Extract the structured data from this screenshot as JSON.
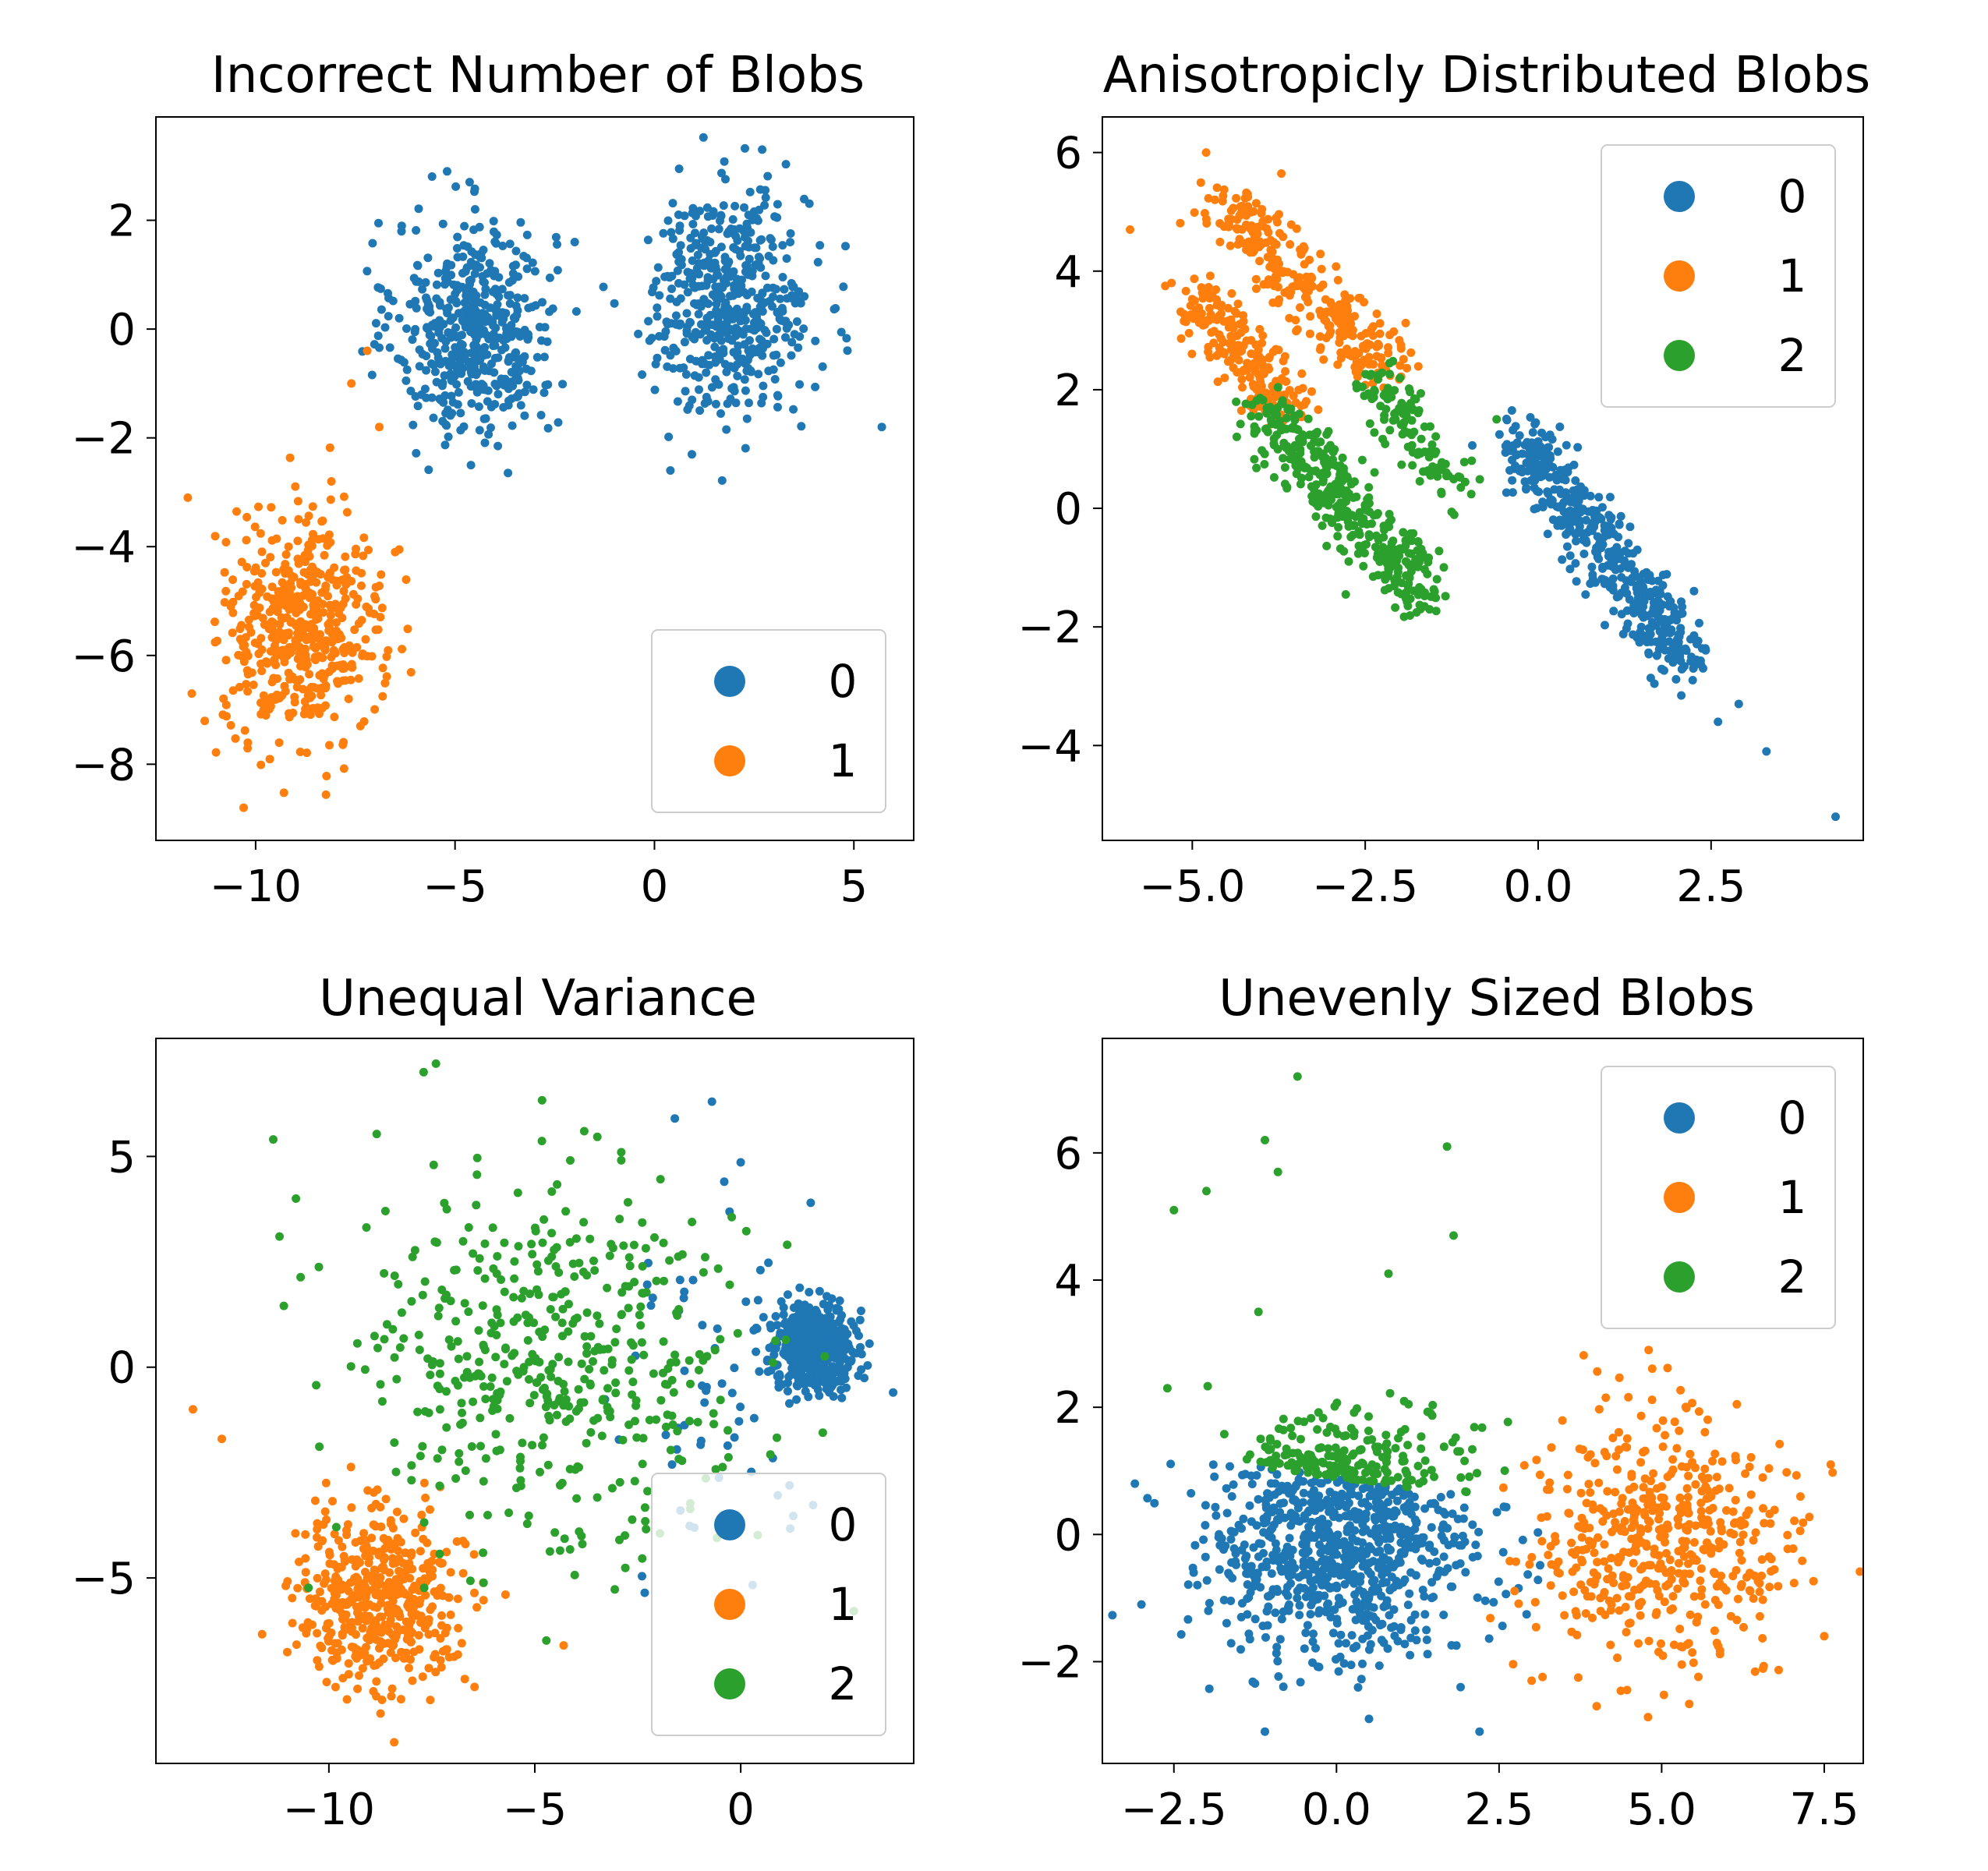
{
  "figure": {
    "colors": {
      "0": "#1f77b4",
      "1": "#ff7f0e",
      "2": "#2ca02c"
    }
  },
  "chart_data": [
    {
      "type": "scatter",
      "title": "Incorrect Number of Blobs",
      "xlim": [
        -12.5,
        6.5
      ],
      "ylim": [
        -9.4,
        3.9
      ],
      "xticks": [
        -10,
        -5,
        0,
        5
      ],
      "yticks": [
        -8,
        -6,
        -4,
        -2,
        0,
        2
      ],
      "legend": {
        "position": "lower-right",
        "entries": [
          "0",
          "1"
        ]
      },
      "grid": false,
      "clusters": [
        {
          "label": "0",
          "shape": "gaussian",
          "center": [
            -4.5,
            0.0
          ],
          "spread": [
            1.0,
            1.0
          ],
          "count": 500
        },
        {
          "label": "0",
          "shape": "gaussian",
          "center": [
            1.9,
            0.5
          ],
          "spread": [
            1.0,
            1.0
          ],
          "count": 500
        },
        {
          "label": "1",
          "shape": "gaussian",
          "center": [
            -8.8,
            -5.5
          ],
          "spread": [
            1.0,
            1.0
          ],
          "count": 500
        }
      ],
      "series": [
        {
          "name": "0",
          "points": [
            [
              -5.2,
              2.9
            ],
            [
              2.7,
              3.3
            ],
            [
              5.7,
              -1.8
            ],
            [
              0.4,
              -2.6
            ],
            [
              -4.6,
              -2.5
            ],
            [
              -2.0,
              1.6
            ],
            [
              -6.4,
              0.2
            ]
          ]
        },
        {
          "name": "1",
          "points": [
            [
              -11.7,
              -3.1
            ],
            [
              -10.3,
              -8.8
            ],
            [
              -8.1,
              -2.8
            ],
            [
              -6.5,
              -4.1
            ],
            [
              -7.2,
              -0.4
            ],
            [
              -6.9,
              -1.8
            ],
            [
              -7.6,
              -1.0
            ],
            [
              -11.6,
              -6.7
            ]
          ]
        }
      ]
    },
    {
      "type": "scatter",
      "title": "Anisotropicly Distributed Blobs",
      "xlim": [
        -6.3,
        4.7
      ],
      "ylim": [
        -5.6,
        6.6
      ],
      "xticks": [
        -5.0,
        -2.5,
        0.0,
        2.5
      ],
      "yticks": [
        -4,
        -2,
        0,
        2,
        4,
        6
      ],
      "legend": {
        "position": "upper-right",
        "entries": [
          "0",
          "1",
          "2"
        ]
      },
      "grid": false,
      "clusters": [
        {
          "label": "0",
          "shape": "segment",
          "from": [
            -0.3,
            1.2
          ],
          "to": [
            2.2,
            -2.6
          ],
          "width": 0.25,
          "count": 480
        },
        {
          "label": "1",
          "shape": "segment",
          "from": [
            -4.6,
            5.2
          ],
          "to": [
            -2.2,
            2.3
          ],
          "width": 0.25,
          "count": 300
        },
        {
          "label": "1",
          "shape": "segment",
          "from": [
            -5.0,
            3.6
          ],
          "to": [
            -3.6,
            1.7
          ],
          "width": 0.22,
          "count": 200
        },
        {
          "label": "2",
          "shape": "segment",
          "from": [
            -4.0,
            1.7
          ],
          "to": [
            -1.6,
            -1.5
          ],
          "width": 0.25,
          "count": 380
        },
        {
          "label": "2",
          "shape": "segment",
          "from": [
            -2.4,
            2.2
          ],
          "to": [
            -1.2,
            0.4
          ],
          "width": 0.2,
          "count": 120
        }
      ],
      "series": [
        {
          "name": "0",
          "points": [
            [
              4.3,
              -5.2
            ],
            [
              3.3,
              -4.1
            ],
            [
              2.9,
              -3.3
            ],
            [
              2.6,
              -3.6
            ]
          ]
        },
        {
          "name": "1",
          "points": [
            [
              -5.9,
              4.7
            ],
            [
              -4.8,
              6.0
            ],
            [
              -4.2,
              5.3
            ],
            [
              -5.3,
              3.8
            ]
          ]
        },
        {
          "name": "2",
          "points": [
            [
              -1.5,
              -1.5
            ],
            [
              -0.6,
              1.5
            ],
            [
              -1.7,
              -1.7
            ]
          ]
        }
      ]
    },
    {
      "type": "scatter",
      "title": "Unequal Variance",
      "xlim": [
        -14.2,
        4.2
      ],
      "ylim": [
        -9.4,
        7.8
      ],
      "xticks": [
        -10,
        -5,
        0
      ],
      "yticks": [
        -5,
        0,
        5
      ],
      "legend": {
        "position": "lower-right",
        "entries": [
          "0",
          "1",
          "2"
        ]
      },
      "grid": false,
      "clusters": [
        {
          "label": "0",
          "shape": "gaussian",
          "center": [
            1.8,
            0.5
          ],
          "spread": [
            0.5,
            0.5
          ],
          "count": 500
        },
        {
          "label": "0",
          "shape": "gaussian",
          "center": [
            -0.5,
            -0.5
          ],
          "spread": [
            1.2,
            1.8
          ],
          "count": 60
        },
        {
          "label": "1",
          "shape": "gaussian",
          "center": [
            -8.8,
            -5.5
          ],
          "spread": [
            1.0,
            1.0
          ],
          "count": 500
        },
        {
          "label": "2",
          "shape": "gaussian",
          "center": [
            -4.5,
            0.0
          ],
          "spread": [
            2.3,
            2.2
          ],
          "count": 480
        }
      ],
      "series": [
        {
          "name": "0",
          "points": [
            [
              -0.7,
              6.3
            ],
            [
              -1.6,
              5.9
            ],
            [
              -0.4,
              4.4
            ],
            [
              1.7,
              3.9
            ],
            [
              3.7,
              -0.6
            ]
          ]
        },
        {
          "name": "1",
          "points": [
            [
              -13.3,
              -1.0
            ],
            [
              -12.6,
              -1.7
            ],
            [
              -4.3,
              -6.6
            ],
            [
              -7.5,
              -4.6
            ]
          ]
        },
        {
          "name": "2",
          "points": [
            [
              -7.4,
              7.2
            ],
            [
              -7.7,
              7.0
            ],
            [
              -10.8,
              4.0
            ],
            [
              -11.2,
              3.1
            ],
            [
              -2.9,
              5.1
            ],
            [
              -3.8,
              5.6
            ]
          ]
        }
      ]
    },
    {
      "type": "scatter",
      "title": "Unevenly Sized Blobs",
      "xlim": [
        -3.6,
        8.1
      ],
      "ylim": [
        -3.6,
        7.8
      ],
      "xticks": [
        -2.5,
        0.0,
        2.5,
        5.0,
        7.5
      ],
      "yticks": [
        -2,
        0,
        2,
        4,
        6
      ],
      "legend": {
        "position": "upper-right",
        "entries": [
          "0",
          "1",
          "2"
        ]
      },
      "grid": false,
      "clusters": [
        {
          "label": "0",
          "shape": "gaussian-cut",
          "center": [
            0.0,
            -0.3
          ],
          "spread": [
            1.0,
            0.8
          ],
          "count": 800
        },
        {
          "label": "1",
          "shape": "gaussian",
          "center": [
            5.0,
            -0.1
          ],
          "spread": [
            1.0,
            1.0
          ],
          "count": 500
        },
        {
          "label": "2",
          "shape": "gaussian-cut",
          "center": [
            0.2,
            1.1
          ],
          "spread": [
            0.9,
            0.5
          ],
          "count": 200
        }
      ],
      "series": [
        {
          "name": "0",
          "points": [
            [
              -3.1,
              0.8
            ],
            [
              -3.0,
              -1.1
            ],
            [
              -1.1,
              -3.1
            ],
            [
              2.2,
              -3.1
            ],
            [
              0.5,
              -2.9
            ]
          ]
        },
        {
          "name": "1",
          "points": [
            [
              4.0,
              -2.7
            ],
            [
              7.5,
              -1.6
            ],
            [
              7.6,
              1.1
            ],
            [
              4.8,
              2.9
            ],
            [
              3.0,
              -2.3
            ]
          ]
        },
        {
          "name": "2",
          "points": [
            [
              -0.6,
              7.2
            ],
            [
              -1.1,
              6.2
            ],
            [
              1.7,
              6.1
            ],
            [
              -0.9,
              5.7
            ],
            [
              -2.5,
              5.1
            ],
            [
              -2.0,
              5.4
            ],
            [
              -1.2,
              3.5
            ],
            [
              1.8,
              4.7
            ],
            [
              0.8,
              4.1
            ],
            [
              -2.6,
              2.3
            ]
          ]
        }
      ]
    }
  ]
}
